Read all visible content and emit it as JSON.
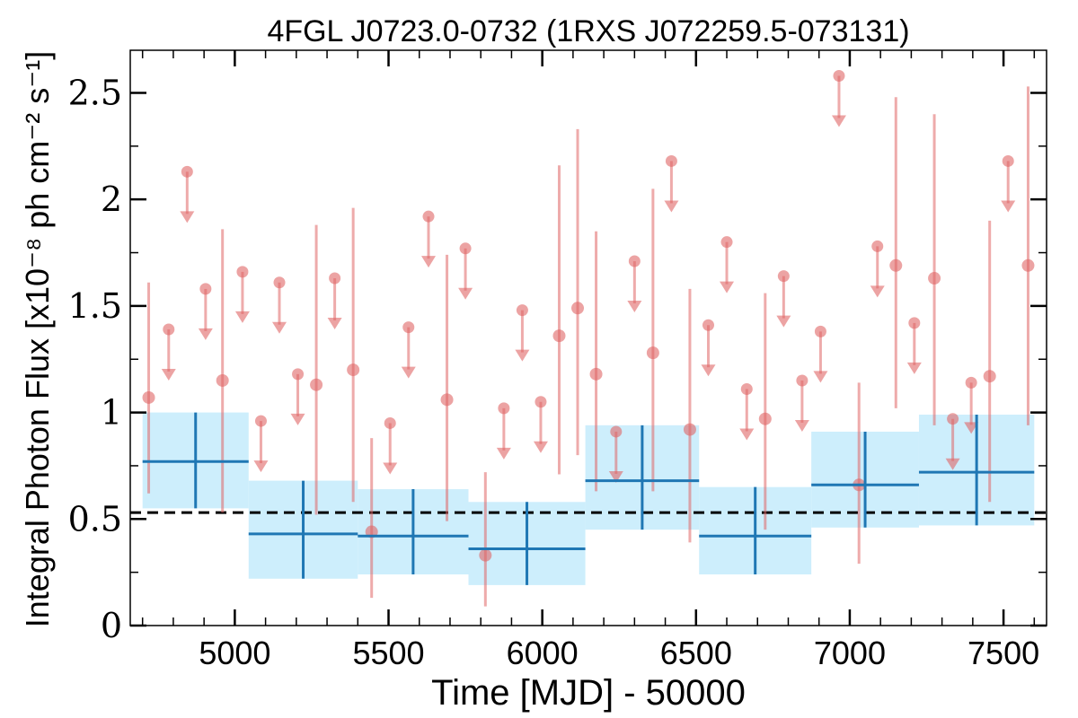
{
  "chart_data": {
    "type": "scatter",
    "title": "4FGL J0723.0-0732 (1RXS J072259.5-073131)",
    "xlabel": "Time [MJD] - 50000",
    "ylabel": "Integral Photon Flux [x10⁻⁸ ph cm⁻² s⁻¹]",
    "xlim": [
      4660,
      7640
    ],
    "ylim": [
      0,
      2.7
    ],
    "xticks": [
      5000,
      5500,
      6000,
      6500,
      7000,
      7500
    ],
    "xtick_labels": [
      "5000",
      "5500",
      "6000",
      "6500",
      "7000",
      "7500"
    ],
    "yticks": [
      0,
      0.5,
      1,
      1.5,
      2,
      2.5
    ],
    "ytick_labels": [
      "0",
      "0.5",
      "1",
      "1.5",
      "2",
      "2.5"
    ],
    "reference_line": {
      "y": 0.53,
      "style": "dashed",
      "color": "#000000"
    },
    "colors": {
      "points": "#e06666",
      "bins": "#1f77b4",
      "bin_band": "#cdeefc"
    },
    "bins": [
      {
        "x0": 4700,
        "x1": 5045,
        "y": 0.77,
        "ylo": 0.55,
        "yhi": 1.0
      },
      {
        "x0": 5045,
        "x1": 5400,
        "y": 0.43,
        "ylo": 0.22,
        "yhi": 0.68
      },
      {
        "x0": 5400,
        "x1": 5760,
        "y": 0.42,
        "ylo": 0.24,
        "yhi": 0.64
      },
      {
        "x0": 5760,
        "x1": 6140,
        "y": 0.36,
        "ylo": 0.19,
        "yhi": 0.58
      },
      {
        "x0": 6140,
        "x1": 6510,
        "y": 0.68,
        "ylo": 0.45,
        "yhi": 0.94
      },
      {
        "x0": 6510,
        "x1": 6875,
        "y": 0.42,
        "ylo": 0.24,
        "yhi": 0.65
      },
      {
        "x0": 6875,
        "x1": 7225,
        "y": 0.66,
        "ylo": 0.46,
        "yhi": 0.91
      },
      {
        "x0": 7225,
        "x1": 7600,
        "y": 0.72,
        "ylo": 0.47,
        "yhi": 0.99
      }
    ],
    "detections": [
      {
        "x": 4720,
        "y": 1.07,
        "ylo": 0.62,
        "yhi": 1.61
      },
      {
        "x": 4960,
        "y": 1.15,
        "ylo": 0.53,
        "yhi": 1.86
      },
      {
        "x": 5265,
        "y": 1.13,
        "ylo": 0.52,
        "yhi": 1.88
      },
      {
        "x": 5385,
        "y": 1.2,
        "ylo": 0.58,
        "yhi": 1.96
      },
      {
        "x": 5445,
        "y": 0.44,
        "ylo": 0.13,
        "yhi": 0.88
      },
      {
        "x": 5690,
        "y": 1.06,
        "ylo": 0.49,
        "yhi": 1.74
      },
      {
        "x": 5815,
        "y": 0.33,
        "ylo": 0.09,
        "yhi": 0.72
      },
      {
        "x": 6055,
        "y": 1.36,
        "ylo": 0.71,
        "yhi": 2.16
      },
      {
        "x": 6115,
        "y": 1.49,
        "ylo": 0.8,
        "yhi": 2.33
      },
      {
        "x": 6175,
        "y": 1.18,
        "ylo": 0.63,
        "yhi": 1.85
      },
      {
        "x": 6360,
        "y": 1.28,
        "ylo": 0.63,
        "yhi": 2.05
      },
      {
        "x": 6480,
        "y": 0.92,
        "ylo": 0.39,
        "yhi": 1.58
      },
      {
        "x": 6725,
        "y": 0.97,
        "ylo": 0.45,
        "yhi": 1.56
      },
      {
        "x": 7030,
        "y": 0.66,
        "ylo": 0.29,
        "yhi": 1.14
      },
      {
        "x": 7150,
        "y": 1.69,
        "ylo": 1.02,
        "yhi": 2.48
      },
      {
        "x": 7275,
        "y": 1.63,
        "ylo": 0.94,
        "yhi": 2.4
      },
      {
        "x": 7455,
        "y": 1.17,
        "ylo": 0.58,
        "yhi": 1.9
      },
      {
        "x": 7580,
        "y": 1.69,
        "ylo": 0.94,
        "yhi": 2.53
      }
    ],
    "upper_limits": [
      {
        "x": 4785,
        "y": 1.39
      },
      {
        "x": 4845,
        "y": 2.13
      },
      {
        "x": 4905,
        "y": 1.58
      },
      {
        "x": 5025,
        "y": 1.66
      },
      {
        "x": 5085,
        "y": 0.96
      },
      {
        "x": 5145,
        "y": 1.61
      },
      {
        "x": 5205,
        "y": 1.18
      },
      {
        "x": 5325,
        "y": 1.63
      },
      {
        "x": 5505,
        "y": 0.95
      },
      {
        "x": 5565,
        "y": 1.4
      },
      {
        "x": 5630,
        "y": 1.92
      },
      {
        "x": 5750,
        "y": 1.77
      },
      {
        "x": 5875,
        "y": 1.02
      },
      {
        "x": 5935,
        "y": 1.48
      },
      {
        "x": 5995,
        "y": 1.05
      },
      {
        "x": 6240,
        "y": 0.91
      },
      {
        "x": 6300,
        "y": 1.71
      },
      {
        "x": 6420,
        "y": 2.18
      },
      {
        "x": 6540,
        "y": 1.41
      },
      {
        "x": 6600,
        "y": 1.8
      },
      {
        "x": 6665,
        "y": 1.11
      },
      {
        "x": 6785,
        "y": 1.64
      },
      {
        "x": 6845,
        "y": 1.15
      },
      {
        "x": 6905,
        "y": 1.38
      },
      {
        "x": 6965,
        "y": 2.58
      },
      {
        "x": 7090,
        "y": 1.78
      },
      {
        "x": 7210,
        "y": 1.42
      },
      {
        "x": 7335,
        "y": 0.97
      },
      {
        "x": 7395,
        "y": 1.14
      },
      {
        "x": 7515,
        "y": 2.18
      }
    ]
  }
}
